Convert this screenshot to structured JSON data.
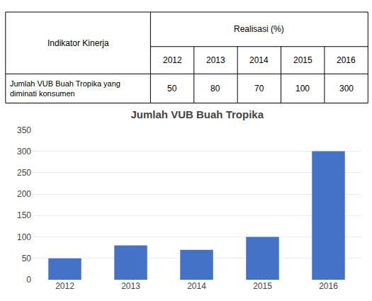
{
  "chart_data": {
    "type": "bar",
    "title": "Jumlah VUB Buah Tropika",
    "categories": [
      "2012",
      "2013",
      "2014",
      "2015",
      "2016"
    ],
    "values": [
      50,
      80,
      70,
      100,
      300
    ],
    "color": "#4472C4",
    "ylim": [
      0,
      350
    ],
    "yticks": [
      0,
      50,
      100,
      150,
      200,
      250,
      300,
      350
    ],
    "grid": true,
    "table": {
      "header": [
        "Indikator Kinerja",
        "Realisasi (%)"
      ],
      "years": [
        "2012",
        "2013",
        "2014",
        "2015",
        "2016"
      ],
      "row_label": [
        "Jumlah VUB Buah Tropika yang",
        "diminati konsumen"
      ],
      "values": [
        50,
        80,
        70,
        100,
        300
      ]
    }
  }
}
